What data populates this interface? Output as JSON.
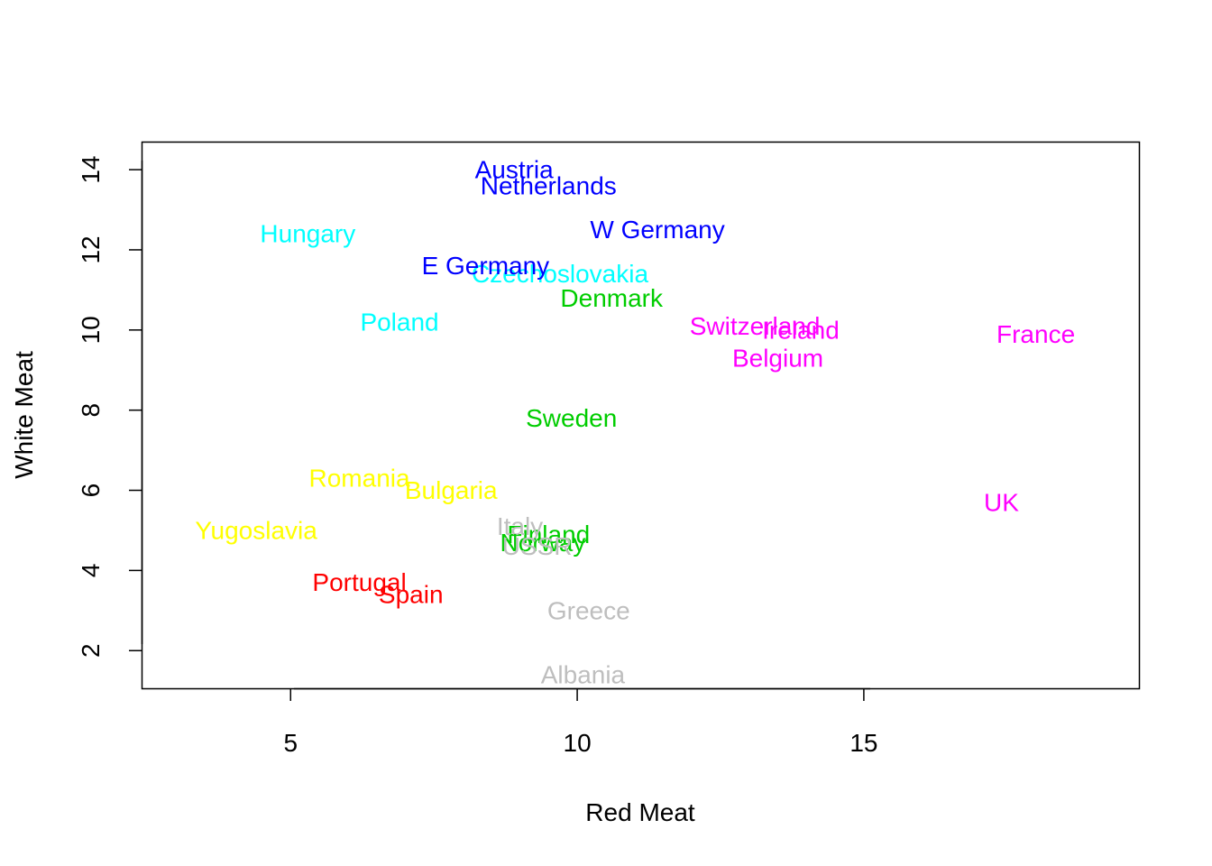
{
  "chart_data": {
    "type": "scatter",
    "title": "",
    "xlabel": "Red Meat",
    "ylabel": "White Meat",
    "xlim": [
      2.4,
      19.8
    ],
    "ylim": [
      1.06,
      14.7
    ],
    "x_ticks": [
      5,
      10,
      15
    ],
    "y_ticks": [
      2,
      4,
      6,
      8,
      10,
      12,
      14
    ],
    "grid": false,
    "legend": "none",
    "points": [
      {
        "label": "Albania",
        "x": 10.1,
        "y": 1.4,
        "color": "#BEBEBE"
      },
      {
        "label": "Austria",
        "x": 8.9,
        "y": 14.0,
        "color": "#0000FF"
      },
      {
        "label": "Belgium",
        "x": 13.5,
        "y": 9.3,
        "color": "#FF00FF"
      },
      {
        "label": "Bulgaria",
        "x": 7.8,
        "y": 6.0,
        "color": "#FFFF00"
      },
      {
        "label": "Czechoslovakia",
        "x": 9.7,
        "y": 11.4,
        "color": "#00FFFF"
      },
      {
        "label": "Denmark",
        "x": 10.6,
        "y": 10.8,
        "color": "#00CD00"
      },
      {
        "label": "E Germany",
        "x": 8.4,
        "y": 11.6,
        "color": "#0000FF"
      },
      {
        "label": "Finland",
        "x": 9.5,
        "y": 4.9,
        "color": "#00CD00"
      },
      {
        "label": "France",
        "x": 18.0,
        "y": 9.9,
        "color": "#FF00FF"
      },
      {
        "label": "Greece",
        "x": 10.2,
        "y": 3.0,
        "color": "#BEBEBE"
      },
      {
        "label": "Hungary",
        "x": 5.3,
        "y": 12.4,
        "color": "#00FFFF"
      },
      {
        "label": "Ireland",
        "x": 13.9,
        "y": 10.0,
        "color": "#FF00FF"
      },
      {
        "label": "Italy",
        "x": 9.0,
        "y": 5.1,
        "color": "#BEBEBE"
      },
      {
        "label": "Netherlands",
        "x": 9.5,
        "y": 13.6,
        "color": "#0000FF"
      },
      {
        "label": "Norway",
        "x": 9.4,
        "y": 4.7,
        "color": "#00CD00"
      },
      {
        "label": "Poland",
        "x": 6.9,
        "y": 10.2,
        "color": "#00FFFF"
      },
      {
        "label": "Portugal",
        "x": 6.2,
        "y": 3.7,
        "color": "#FF0000"
      },
      {
        "label": "Romania",
        "x": 6.2,
        "y": 6.3,
        "color": "#FFFF00"
      },
      {
        "label": "Spain",
        "x": 7.1,
        "y": 3.4,
        "color": "#FF0000"
      },
      {
        "label": "Sweden",
        "x": 9.9,
        "y": 7.8,
        "color": "#00CD00"
      },
      {
        "label": "Switzerland",
        "x": 13.1,
        "y": 10.1,
        "color": "#FF00FF"
      },
      {
        "label": "UK",
        "x": 17.4,
        "y": 5.7,
        "color": "#FF00FF"
      },
      {
        "label": "USSR",
        "x": 9.3,
        "y": 4.6,
        "color": "#BEBEBE"
      },
      {
        "label": "W Germany",
        "x": 11.4,
        "y": 12.5,
        "color": "#0000FF"
      },
      {
        "label": "Yugoslavia",
        "x": 4.4,
        "y": 5.0,
        "color": "#FFFF00"
      }
    ]
  }
}
